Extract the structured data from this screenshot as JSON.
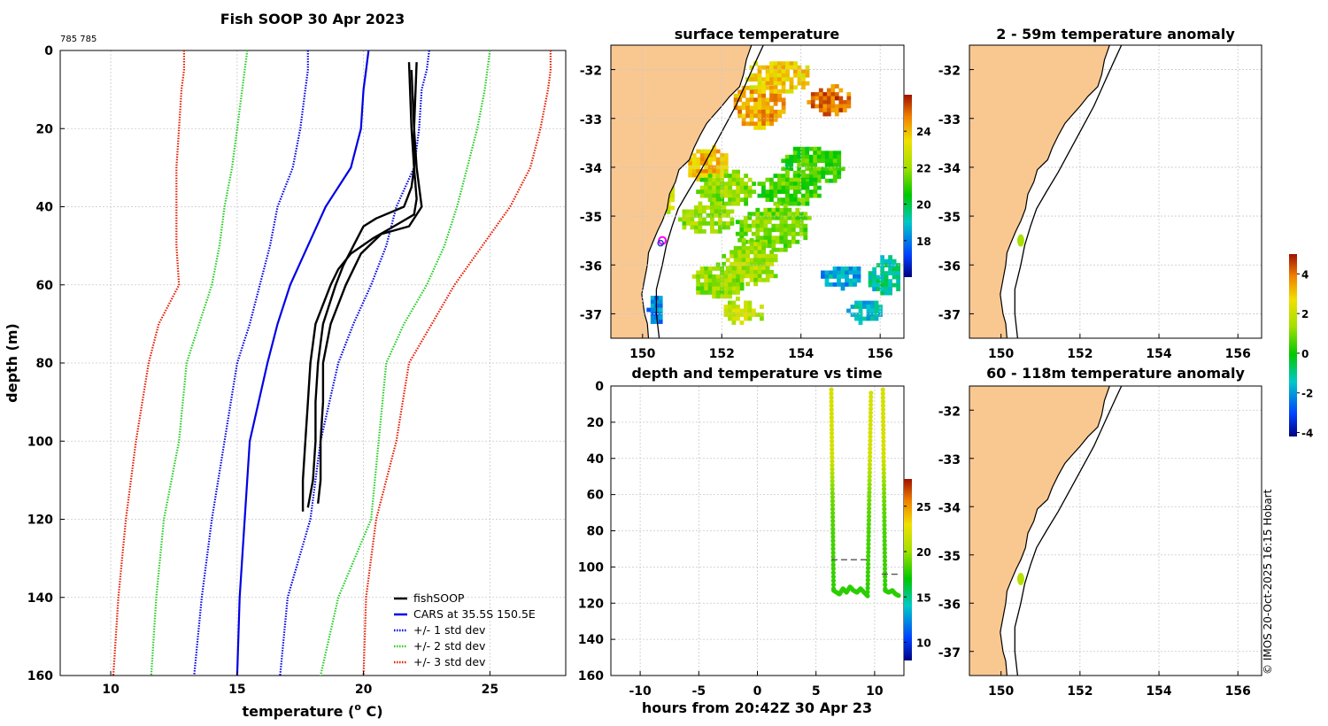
{
  "colors": {
    "land": "#f9c891",
    "fish": "#000000",
    "cars": "#0000e6",
    "std1": "#0000e6",
    "std2": "#22cc22",
    "std3": "#e61a00"
  },
  "copyright": "© IMOS 20-Oct-2025 16:15 Hobart",
  "chart_data": [
    {
      "type": "line",
      "id": "profile",
      "title": "Fish SOOP 30 Apr 2023",
      "subtitle": "785 785",
      "xlabel": "temperature (",
      "xlabel_sup": "o",
      "xlabel_end": " C)",
      "ylabel": "depth (m)",
      "xlim": [
        8,
        28
      ],
      "ylim": [
        160,
        0
      ],
      "xticks": [
        "10",
        "15",
        "20",
        "25"
      ],
      "yticks": [
        "0",
        "20",
        "40",
        "60",
        "80",
        "100",
        "120",
        "140",
        "160"
      ],
      "legend": {
        "position": "bottom-right",
        "entries": [
          "fishSOOP",
          "CARS at 35.5S 150.5E",
          "+/- 1 std dev",
          "+/- 2 std dev",
          "+/- 3 std dev"
        ]
      },
      "depth": [
        0,
        5,
        10,
        20,
        30,
        40,
        50,
        60,
        70,
        80,
        100,
        120,
        140,
        160
      ],
      "cars_mean": [
        20.2,
        20.1,
        20.0,
        19.9,
        19.5,
        18.5,
        17.8,
        17.1,
        16.6,
        16.2,
        15.5,
        15.3,
        15.1,
        15.0
      ],
      "std1_minus": [
        17.8,
        17.8,
        17.7,
        17.5,
        17.2,
        16.6,
        16.3,
        15.9,
        15.5,
        15.0,
        14.5,
        14.0,
        13.6,
        13.3
      ],
      "std1_plus": [
        22.6,
        22.5,
        22.3,
        22.2,
        22.0,
        21.3,
        20.9,
        20.3,
        19.6,
        19.0,
        18.3,
        17.9,
        17.0,
        16.7
      ],
      "std2_minus": [
        15.4,
        15.3,
        15.2,
        15.0,
        14.8,
        14.5,
        14.3,
        14.0,
        13.5,
        13.0,
        12.7,
        12.1,
        11.8,
        11.6
      ],
      "std2_plus": [
        25.0,
        24.9,
        24.8,
        24.5,
        24.1,
        23.7,
        23.2,
        22.5,
        21.6,
        20.9,
        20.6,
        20.3,
        19.0,
        18.3
      ],
      "std3_minus": [
        12.9,
        12.9,
        12.8,
        12.7,
        12.6,
        12.6,
        12.6,
        12.7,
        11.9,
        11.5,
        11.0,
        10.6,
        10.3,
        10.1
      ],
      "std3_plus": [
        27.4,
        27.4,
        27.3,
        27.0,
        26.6,
        25.8,
        24.7,
        23.6,
        22.7,
        21.8,
        21.3,
        20.5,
        20.1,
        20.0
      ],
      "fish_profiles": [
        {
          "depth": [
            3,
            20,
            30,
            35,
            40,
            43,
            45,
            50,
            55,
            60,
            70,
            80,
            90,
            100,
            110,
            117
          ],
          "temp": [
            21.8,
            21.9,
            22.0,
            21.9,
            21.6,
            20.5,
            20.0,
            19.6,
            19.2,
            18.9,
            18.4,
            18.2,
            18.1,
            18.1,
            18.0,
            17.8
          ]
        },
        {
          "depth": [
            3,
            20,
            30,
            38,
            42,
            45,
            48,
            52,
            56,
            60,
            70,
            80,
            90,
            100,
            110,
            118
          ],
          "temp": [
            22.1,
            22.0,
            22.0,
            22.1,
            22.0,
            21.2,
            20.4,
            19.5,
            19.0,
            18.7,
            18.1,
            17.9,
            17.8,
            17.7,
            17.6,
            17.6
          ]
        },
        {
          "depth": [
            5,
            20,
            30,
            40,
            45,
            47,
            52,
            60,
            70,
            80,
            90,
            100,
            110,
            116
          ],
          "temp": [
            21.9,
            22.0,
            22.1,
            22.3,
            21.8,
            20.7,
            19.9,
            19.3,
            18.7,
            18.4,
            18.4,
            18.3,
            18.3,
            18.2
          ]
        }
      ]
    },
    {
      "type": "heatmap",
      "id": "sst",
      "title": "surface temperature",
      "xlim": [
        149.2,
        156.6
      ],
      "ylim": [
        -37.5,
        -31.5
      ],
      "xticks": [
        "150",
        "152",
        "154",
        "156"
      ],
      "yticks": [
        "-32",
        "-33",
        "-34",
        "-35",
        "-36",
        "-37"
      ],
      "colorbar": {
        "range": [
          16,
          26
        ],
        "ticks": [
          "18",
          "20",
          "22",
          "24"
        ]
      },
      "blobs": [
        {
          "lon": 151.6,
          "lat": -33.9,
          "rx": 0.55,
          "ry": 0.35,
          "t": 23.8
        },
        {
          "lon": 152.9,
          "lat": -32.7,
          "rx": 0.7,
          "ry": 0.45,
          "t": 24.2
        },
        {
          "lon": 153.4,
          "lat": -32.1,
          "rx": 0.8,
          "ry": 0.35,
          "t": 23.5
        },
        {
          "lon": 154.7,
          "lat": -32.6,
          "rx": 0.55,
          "ry": 0.3,
          "t": 24.8
        },
        {
          "lon": 154.3,
          "lat": -33.9,
          "rx": 0.8,
          "ry": 0.4,
          "t": 20.8
        },
        {
          "lon": 153.7,
          "lat": -34.4,
          "rx": 0.8,
          "ry": 0.35,
          "t": 21.0
        },
        {
          "lon": 152.1,
          "lat": -34.4,
          "rx": 0.75,
          "ry": 0.35,
          "t": 21.6
        },
        {
          "lon": 151.6,
          "lat": -35.0,
          "rx": 0.7,
          "ry": 0.3,
          "t": 21.8
        },
        {
          "lon": 153.3,
          "lat": -35.2,
          "rx": 0.95,
          "ry": 0.45,
          "t": 21.4
        },
        {
          "lon": 152.7,
          "lat": -35.9,
          "rx": 0.7,
          "ry": 0.45,
          "t": 22.0
        },
        {
          "lon": 151.9,
          "lat": -36.3,
          "rx": 0.65,
          "ry": 0.35,
          "t": 21.8
        },
        {
          "lon": 152.5,
          "lat": -36.9,
          "rx": 0.55,
          "ry": 0.25,
          "t": 22.4
        },
        {
          "lon": 150.9,
          "lat": -33.6,
          "rx": 0.25,
          "ry": 0.25,
          "t": 23.2
        },
        {
          "lon": 150.6,
          "lat": -34.6,
          "rx": 0.2,
          "ry": 0.3,
          "t": 22.6
        },
        {
          "lon": 155.0,
          "lat": -36.2,
          "rx": 0.5,
          "ry": 0.25,
          "t": 18.4
        },
        {
          "lon": 155.6,
          "lat": -36.9,
          "rx": 0.45,
          "ry": 0.25,
          "t": 18.8
        },
        {
          "lon": 150.3,
          "lat": -36.9,
          "rx": 0.2,
          "ry": 0.35,
          "t": 18.0
        },
        {
          "lon": 156.1,
          "lat": -36.2,
          "rx": 0.4,
          "ry": 0.4,
          "t": 19.2
        }
      ],
      "marker": {
        "lon": 150.5,
        "lat": -35.5
      }
    },
    {
      "type": "scatter",
      "id": "depth_time",
      "title": "depth and temperature vs time",
      "xlabel": "hours from 20:42Z 30 Apr 23",
      "xlim": [
        -12.5,
        12.5
      ],
      "ylim": [
        160,
        0
      ],
      "xticks": [
        "-10",
        "-5",
        "0",
        "5",
        "10"
      ],
      "yticks": [
        "0",
        "20",
        "40",
        "60",
        "80",
        "100",
        "120",
        "140",
        "160"
      ],
      "colorbar": {
        "range": [
          8,
          28
        ],
        "ticks": [
          "10",
          "15",
          "20",
          "25"
        ]
      },
      "dashed_levels": [
        {
          "depth": 96,
          "from": 6.3,
          "to": 9.6
        },
        {
          "depth": 104,
          "from": 10.6,
          "to": 12.2
        }
      ],
      "cast_depth": [
        0,
        10,
        20,
        30,
        40,
        45,
        50,
        55,
        60,
        70,
        80,
        90,
        100,
        110,
        113
      ],
      "cast_temp": [
        22.0,
        22.0,
        22.0,
        22.0,
        21.8,
        21.0,
        20.2,
        19.6,
        19.2,
        18.7,
        18.4,
        18.2,
        18.1,
        17.9,
        17.8
      ],
      "casts": [
        {
          "down_t": 6.3,
          "bottom": [
            [
              6.5,
              113
            ],
            [
              7.0,
              115
            ],
            [
              7.3,
              112
            ],
            [
              7.6,
              114
            ],
            [
              7.9,
              111
            ],
            [
              8.2,
              113
            ],
            [
              8.5,
              114
            ],
            [
              8.8,
              112
            ],
            [
              9.1,
              114
            ],
            [
              9.4,
              116
            ]
          ],
          "up_t": 9.7
        },
        {
          "down_t": 10.7,
          "bottom": [
            [
              10.9,
              113
            ],
            [
              11.2,
              114
            ],
            [
              11.5,
              113
            ],
            [
              11.8,
              115
            ],
            [
              12.1,
              116
            ]
          ],
          "up_t": null
        }
      ]
    },
    {
      "type": "heatmap",
      "id": "anom_upper",
      "title": "2 - 59m temperature anomaly",
      "xlim": [
        149.2,
        156.6
      ],
      "ylim": [
        -37.5,
        -31.5
      ],
      "xticks": [
        "150",
        "152",
        "154",
        "156"
      ],
      "yticks": [
        "-32",
        "-33",
        "-34",
        "-35",
        "-36",
        "-37"
      ],
      "points": [
        {
          "lon": 150.5,
          "lat": -35.5,
          "value": 1.5
        }
      ],
      "colorbar": {
        "range": [
          -4.2,
          5.0
        ],
        "ticks": [
          "-4",
          "-2",
          "0",
          "2",
          "4"
        ]
      }
    },
    {
      "type": "heatmap",
      "id": "anom_lower",
      "title": "60 - 118m temperature anomaly",
      "xlim": [
        149.2,
        156.6
      ],
      "ylim": [
        -37.5,
        -31.5
      ],
      "xticks": [
        "150",
        "152",
        "154",
        "156"
      ],
      "yticks": [
        "-32",
        "-33",
        "-34",
        "-35",
        "-36",
        "-37"
      ],
      "points": [
        {
          "lon": 150.5,
          "lat": -35.5,
          "value": 1.7
        }
      ]
    }
  ],
  "coastline": [
    [
      150.15,
      -37.5
    ],
    [
      150.12,
      -37.2
    ],
    [
      150.05,
      -37.0
    ],
    [
      149.98,
      -36.6
    ],
    [
      150.05,
      -36.3
    ],
    [
      150.12,
      -36.0
    ],
    [
      150.15,
      -35.75
    ],
    [
      150.25,
      -35.55
    ],
    [
      150.38,
      -35.3
    ],
    [
      150.5,
      -35.1
    ],
    [
      150.62,
      -34.85
    ],
    [
      150.68,
      -34.55
    ],
    [
      150.83,
      -34.3
    ],
    [
      150.92,
      -34.05
    ],
    [
      151.18,
      -33.85
    ],
    [
      151.3,
      -33.6
    ],
    [
      151.45,
      -33.35
    ],
    [
      151.62,
      -33.1
    ],
    [
      151.78,
      -32.95
    ],
    [
      152.0,
      -32.75
    ],
    [
      152.2,
      -32.55
    ],
    [
      152.45,
      -32.35
    ],
    [
      152.55,
      -32.1
    ],
    [
      152.62,
      -31.8
    ],
    [
      152.75,
      -31.5
    ]
  ],
  "shelf_line": [
    [
      150.42,
      -37.5
    ],
    [
      150.35,
      -37.0
    ],
    [
      150.35,
      -36.5
    ],
    [
      150.5,
      -36.0
    ],
    [
      150.6,
      -35.6
    ],
    [
      150.75,
      -35.2
    ],
    [
      150.9,
      -34.85
    ],
    [
      151.15,
      -34.5
    ],
    [
      151.45,
      -34.1
    ],
    [
      151.75,
      -33.65
    ],
    [
      152.05,
      -33.2
    ],
    [
      152.35,
      -32.75
    ],
    [
      152.6,
      -32.3
    ],
    [
      152.85,
      -31.85
    ],
    [
      153.05,
      -31.5
    ]
  ],
  "fish_path": [
    [
      150.5,
      -35.52
    ],
    [
      150.52,
      -35.48
    ],
    [
      150.48,
      -35.45
    ]
  ]
}
